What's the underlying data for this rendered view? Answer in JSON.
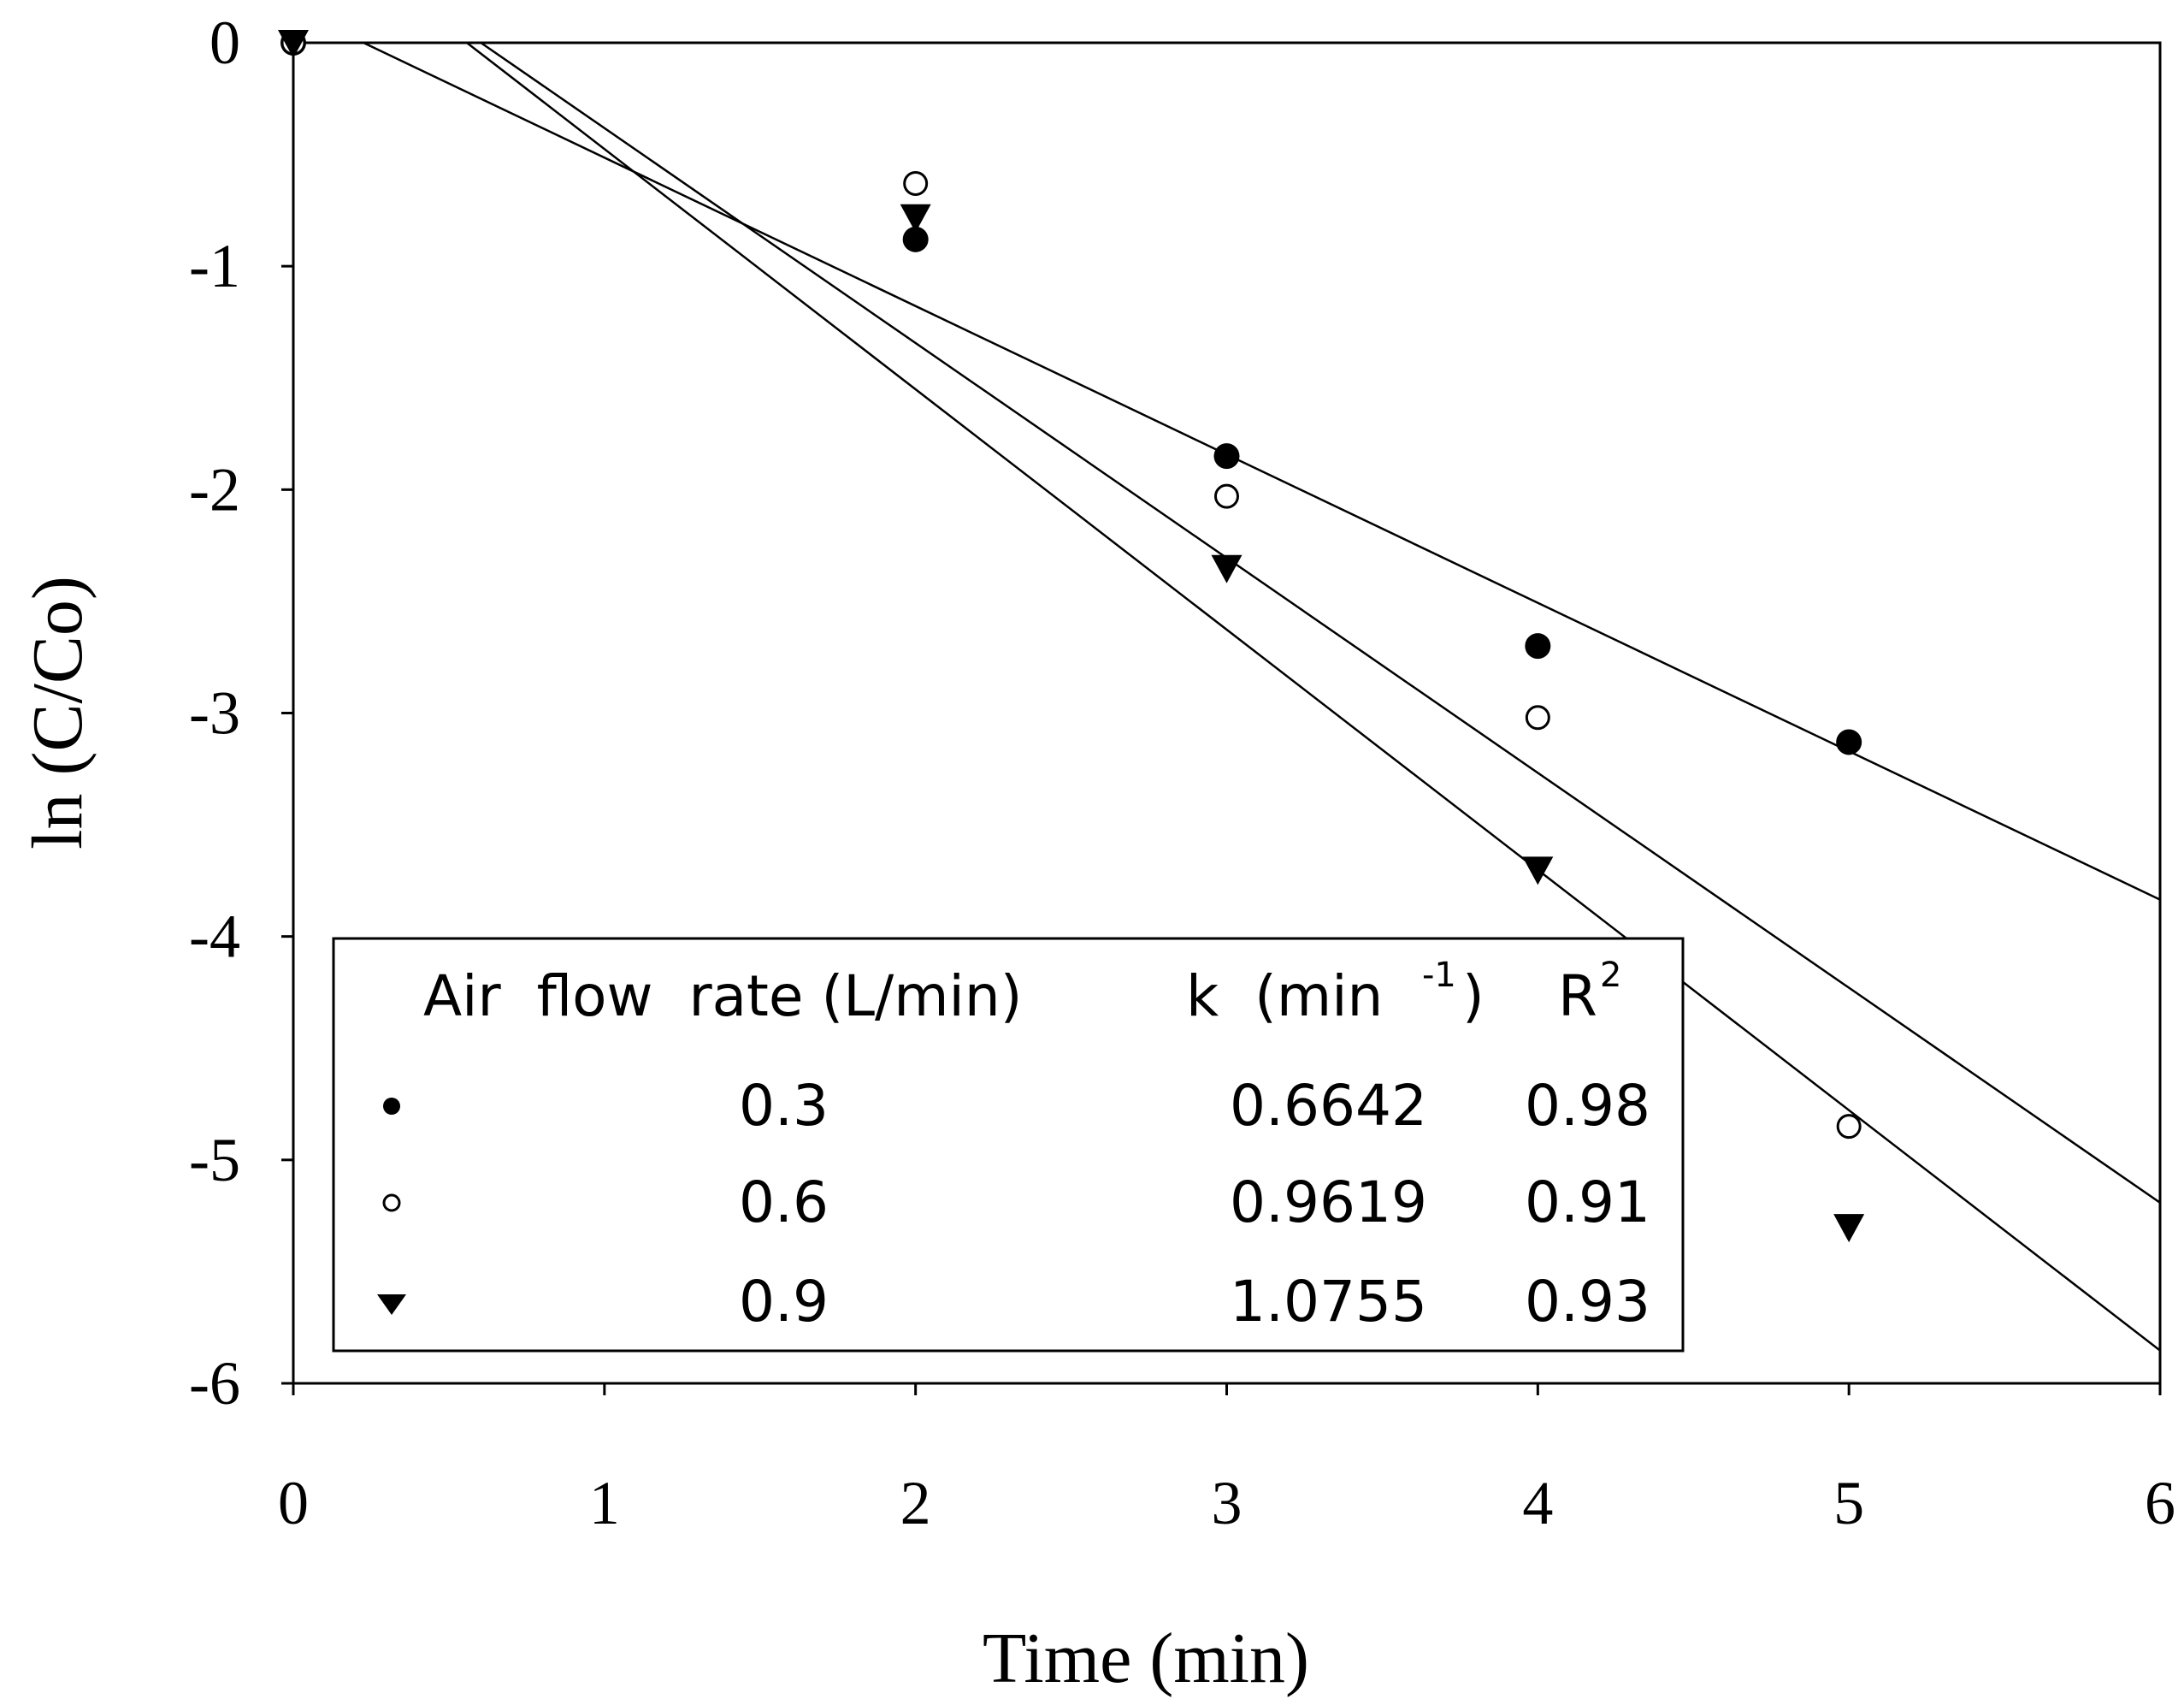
{
  "chart_data": {
    "type": "scatter",
    "xlabel": "Time (min)",
    "ylabel": "ln (C/Co)",
    "xlim": [
      0,
      6
    ],
    "ylim": [
      -6,
      0
    ],
    "x_ticks": [
      "0",
      "1",
      "2",
      "3",
      "4",
      "5",
      "6"
    ],
    "y_ticks": [
      "0",
      "-1",
      "-2",
      "-3",
      "-4",
      "-5",
      "-6"
    ],
    "x_tick_values": [
      0,
      1,
      2,
      3,
      4,
      5,
      6
    ],
    "y_tick_values": [
      0,
      -1,
      -2,
      -3,
      -4,
      -5,
      -6
    ],
    "grid": false,
    "legend_position": "bottom-left",
    "series": [
      {
        "name": "0.3",
        "marker": "filled-circle",
        "x": [
          0,
          2,
          3,
          4,
          5
        ],
        "y": [
          0,
          -0.88,
          -1.85,
          -2.7,
          -3.13
        ],
        "fit": {
          "slope": -0.6642,
          "intercept": 0.15
        }
      },
      {
        "name": "0.6",
        "marker": "open-circle",
        "x": [
          0,
          2,
          3,
          4,
          5
        ],
        "y": [
          0,
          -0.63,
          -2.03,
          -3.02,
          -4.85
        ],
        "fit": {
          "slope": -0.9619,
          "intercept": 0.58
        }
      },
      {
        "name": "0.9",
        "marker": "filled-triangle-down",
        "x": [
          0,
          2,
          3,
          4,
          5
        ],
        "y": [
          0,
          -0.78,
          -2.35,
          -3.7,
          -5.3
        ],
        "fit": {
          "slope": -1.0755,
          "intercept": 0.6
        }
      }
    ],
    "legend_table": {
      "header_flow": "Air  flow  rate (L/min)",
      "header_k": "k  (min",
      "header_k_sup": "-1",
      "header_k_close": ")",
      "header_r": "R",
      "header_r_sup": "2",
      "rows": [
        {
          "flow": "0.3",
          "k": "0.6642",
          "r2": "0.98"
        },
        {
          "flow": "0.6",
          "k": "0.9619",
          "r2": "0.91"
        },
        {
          "flow": "0.9",
          "k": "1.0755",
          "r2": "0.93"
        }
      ]
    }
  }
}
